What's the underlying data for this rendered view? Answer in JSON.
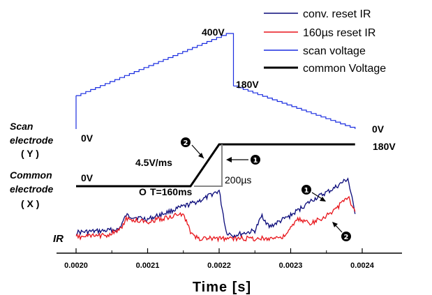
{
  "chart_data": {
    "type": "line",
    "xlabel": "Time [s]",
    "ylabel": "IR",
    "x_ticks": [
      "0.0020",
      "0.0021",
      "0.0022",
      "0.0023",
      "0.0024"
    ],
    "xlim": [
      0.00195,
      0.00245
    ],
    "legend": {
      "placement": "top-right",
      "entries": [
        {
          "name": "conv. reset IR",
          "color": "#0a0a7a"
        },
        {
          "name": "160µs reset IR",
          "color": "#e8141a"
        },
        {
          "name": "scan voltage",
          "color": "#1a2de0"
        },
        {
          "name": "common Voltage",
          "color": "#000000"
        }
      ]
    },
    "series": [
      {
        "name": "scan voltage",
        "x": [
          0.002,
          0.002,
          0.00221,
          0.00222,
          0.00222,
          0.00239
        ],
        "y": [
          0,
          140,
          400,
          400,
          180,
          0
        ]
      },
      {
        "name": "common Voltage",
        "x": [
          0.002,
          0.00216,
          0.0022,
          0.00239
        ],
        "y": [
          0,
          0,
          180,
          180
        ]
      },
      {
        "name": "conv. reset IR",
        "x": [
          0.002,
          0.00204,
          0.00206,
          0.00207,
          0.0021,
          0.00213,
          0.00216,
          0.00218,
          0.00219,
          0.0022,
          0.00221,
          0.00222,
          0.00225,
          0.00226,
          0.00227,
          0.0023,
          0.00233,
          0.00236,
          0.00238,
          0.00239
        ],
        "y": [
          0.18,
          0.2,
          0.22,
          0.4,
          0.35,
          0.45,
          0.55,
          0.62,
          0.68,
          0.72,
          0.18,
          0.14,
          0.2,
          0.4,
          0.25,
          0.4,
          0.6,
          0.75,
          0.88,
          0.42
        ]
      },
      {
        "name": "160µs reset IR",
        "x": [
          0.002,
          0.00204,
          0.00206,
          0.00207,
          0.0021,
          0.00213,
          0.00215,
          0.00216,
          0.00217,
          0.0022,
          0.00223,
          0.00226,
          0.00229,
          0.00231,
          0.00233,
          0.00236,
          0.00238,
          0.00239
        ],
        "y": [
          0.12,
          0.14,
          0.2,
          0.35,
          0.32,
          0.38,
          0.42,
          0.18,
          0.1,
          0.1,
          0.1,
          0.1,
          0.12,
          0.35,
          0.3,
          0.45,
          0.65,
          0.45
        ]
      }
    ],
    "annotations": {
      "v400": "400V",
      "v180_scan": "180V",
      "v0_scan_end": "0V",
      "v0_scan": "0V",
      "v180_common": "180V",
      "v0_common": "0V",
      "slope": "4.5V/ms",
      "width": "200µs",
      "tlabel": "T=160ms",
      "circle_mark": "O",
      "num1": "1",
      "num2": "2",
      "scan_label_1": "Scan",
      "scan_label_2": "electrode",
      "scan_label_3": "( Y )",
      "common_label_1": "Common",
      "common_label_2": "electrode",
      "common_label_3": "( X )"
    }
  }
}
